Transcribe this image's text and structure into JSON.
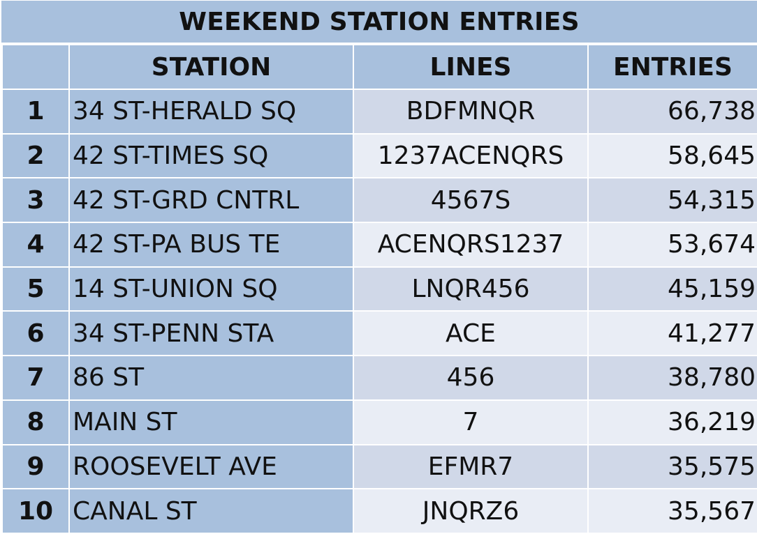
{
  "title": "WEEKEND STATION ENTRIES",
  "columns": {
    "rank": "",
    "station": "STATION",
    "lines": "LINES",
    "entries": "ENTRIES"
  },
  "rows": [
    {
      "rank": "1",
      "station": "34 ST-HERALD SQ",
      "lines": "BDFMNQR",
      "entries": "66,738"
    },
    {
      "rank": "2",
      "station": "42 ST-TIMES SQ",
      "lines": "1237ACENQRS",
      "entries": "58,645"
    },
    {
      "rank": "3",
      "station": "42 ST-GRD CNTRL",
      "lines": "4567S",
      "entries": "54,315"
    },
    {
      "rank": "4",
      "station": "42 ST-PA BUS TE",
      "lines": "ACENQRS1237",
      "entries": "53,674"
    },
    {
      "rank": "5",
      "station": "14 ST-UNION SQ",
      "lines": "LNQR456",
      "entries": "45,159"
    },
    {
      "rank": "6",
      "station": "34 ST-PENN STA",
      "lines": "ACE",
      "entries": "41,277"
    },
    {
      "rank": "7",
      "station": "86 ST",
      "lines": "456",
      "entries": "38,780"
    },
    {
      "rank": "8",
      "station": "MAIN ST",
      "lines": "7",
      "entries": "36,219"
    },
    {
      "rank": "9",
      "station": "ROOSEVELT AVE",
      "lines": "EFMR7",
      "entries": "35,575"
    },
    {
      "rank": "10",
      "station": "CANAL ST",
      "lines": "JNQRZ6",
      "entries": "35,567"
    }
  ],
  "colors": {
    "header_fill": "#a8c0dd",
    "band_dark": "#d0d8e8",
    "band_light": "#e9edf5"
  }
}
